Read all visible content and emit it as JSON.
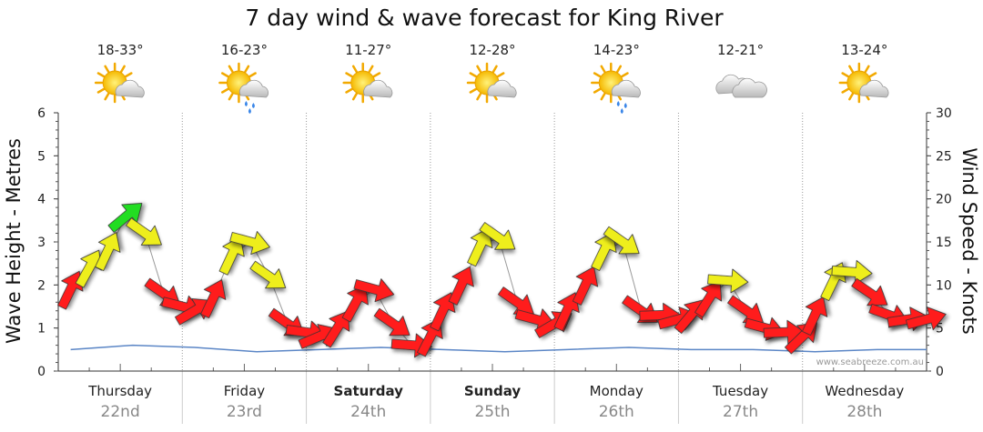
{
  "chart_data": {
    "type": "line",
    "title": "7 day wind & wave forecast for King River",
    "ylabel_left": "Wave Height - Metres",
    "ylabel_right": "Wind Speed - Knots",
    "ylim_left": [
      0,
      6
    ],
    "ylim_right": [
      0,
      30
    ],
    "yticks_left": [
      0,
      1,
      2,
      3,
      4,
      5,
      6
    ],
    "yticks_right": [
      0,
      5,
      10,
      15,
      20,
      25,
      30
    ],
    "credit": "www.seabreeze.com.au",
    "days": [
      {
        "day": "Thursday",
        "date": "22nd",
        "bold": false,
        "temp": "18-33°",
        "weather": "partly-cloudy-sun-icon"
      },
      {
        "day": "Friday",
        "date": "23rd",
        "bold": false,
        "temp": "16-23°",
        "weather": "sun-cloud-showers-icon"
      },
      {
        "day": "Saturday",
        "date": "24th",
        "bold": true,
        "temp": "11-27°",
        "weather": "partly-cloudy-sun-icon"
      },
      {
        "day": "Sunday",
        "date": "25th",
        "bold": true,
        "temp": "12-28°",
        "weather": "partly-cloudy-sun-icon"
      },
      {
        "day": "Monday",
        "date": "26th",
        "bold": false,
        "temp": "14-23°",
        "weather": "sun-cloud-showers-icon"
      },
      {
        "day": "Tuesday",
        "date": "27th",
        "bold": false,
        "temp": "12-21°",
        "weather": "cloud-icon"
      },
      {
        "day": "Wednesday",
        "date": "28th",
        "bold": false,
        "temp": "13-24°",
        "weather": "partly-cloudy-sun-icon"
      }
    ],
    "wind_series": {
      "name": "Wind speed (knots)",
      "x_days": [
        0.0,
        0.15,
        0.3,
        0.45,
        0.6,
        0.75,
        0.9,
        1.0,
        1.15,
        1.3,
        1.45,
        1.6,
        1.75,
        1.9,
        2.0,
        2.15,
        2.3,
        2.45,
        2.6,
        2.75,
        2.9,
        3.0,
        3.15,
        3.3,
        3.45,
        3.6,
        3.75,
        3.9,
        4.0,
        4.15,
        4.3,
        4.45,
        4.6,
        4.75,
        4.9,
        5.0,
        5.15,
        5.3,
        5.45,
        5.6,
        5.75,
        5.9,
        6.0,
        6.15,
        6.3,
        6.45,
        6.6,
        6.75,
        6.9
      ],
      "values": [
        9.5,
        12,
        14,
        18,
        16,
        9,
        7.5,
        7,
        8.5,
        13.5,
        15,
        11,
        5.5,
        4.5,
        4,
        5,
        8,
        9.5,
        5.5,
        3,
        4,
        7,
        10,
        14.5,
        15.5,
        8,
        6,
        5.5,
        7,
        10,
        14,
        15,
        7,
        6.5,
        6,
        6.5,
        8.5,
        10.5,
        7,
        5,
        4.5,
        4,
        6.5,
        10.5,
        11.5,
        9,
        6.5,
        6,
        6
      ],
      "color_scale": [
        {
          "max_knots": 10,
          "color": "#ff1a1a"
        },
        {
          "max_knots": 17,
          "color": "#eeee1a"
        },
        {
          "max_knots": 25,
          "color": "#22dd22"
        }
      ]
    },
    "wave_series": {
      "name": "Wave height (m)",
      "x_days": [
        0.0,
        0.5,
        1.0,
        1.5,
        2.0,
        2.5,
        3.0,
        3.5,
        4.0,
        4.5,
        5.0,
        5.5,
        6.0,
        6.5,
        6.9
      ],
      "values": [
        0.5,
        0.6,
        0.55,
        0.45,
        0.5,
        0.55,
        0.5,
        0.45,
        0.5,
        0.55,
        0.5,
        0.5,
        0.45,
        0.5,
        0.5
      ],
      "color": "#5b86c6"
    }
  }
}
